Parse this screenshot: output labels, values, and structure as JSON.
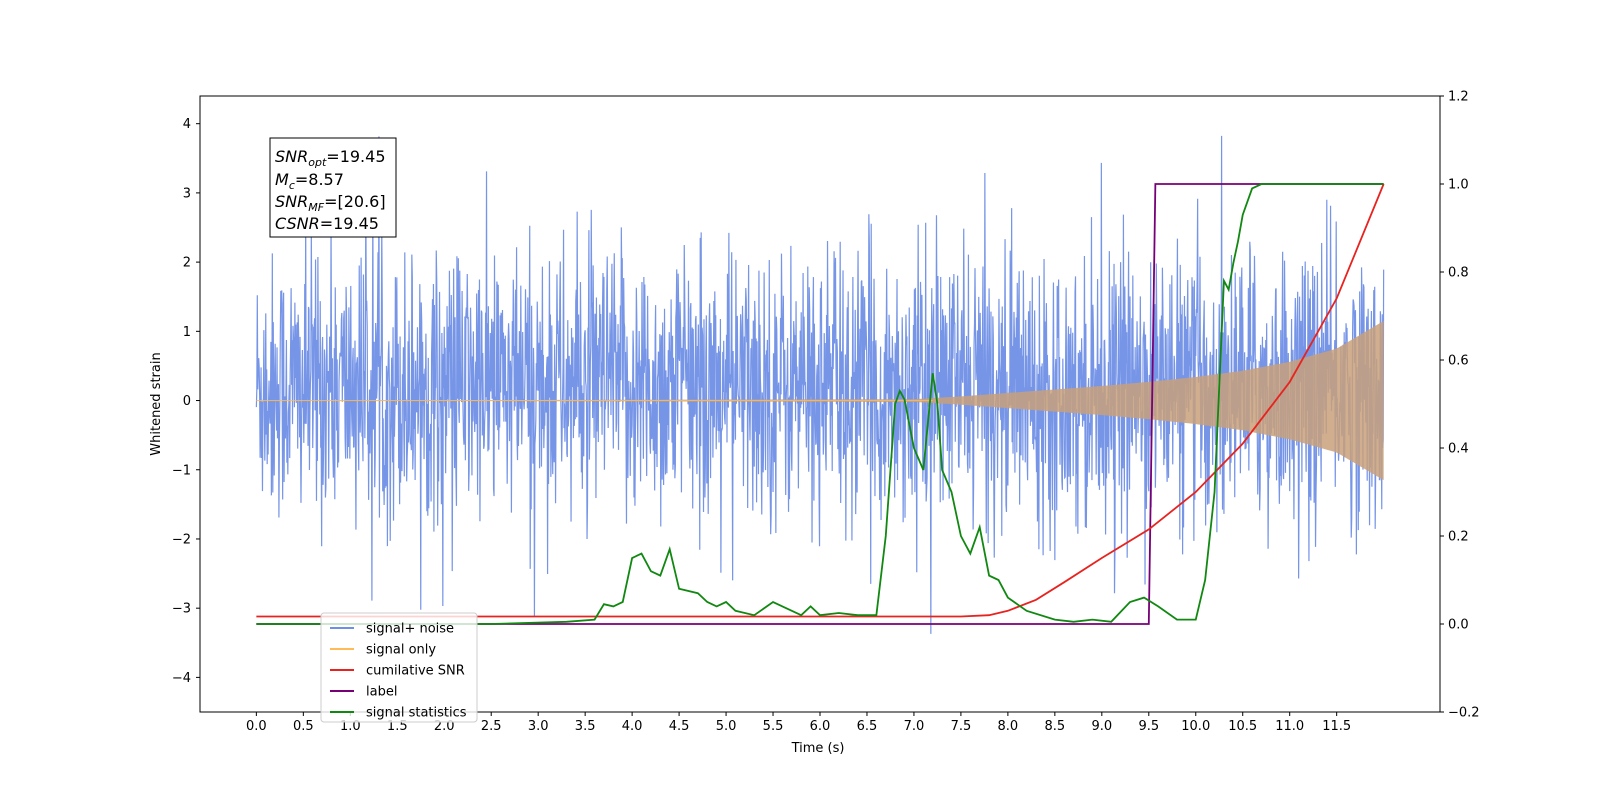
{
  "chart_data": {
    "type": "line",
    "xlabel": "Time (s)",
    "ylabel": "Whitened strain",
    "xlim": [
      -0.6,
      12.6
    ],
    "ylim": [
      -4.5,
      4.4
    ],
    "y2lim": [
      -0.2,
      1.2
    ],
    "x_ticks": [
      "0.0",
      "0.5",
      "1.0",
      "1.5",
      "2.0",
      "2.5",
      "3.0",
      "3.5",
      "4.0",
      "4.5",
      "5.0",
      "5.5",
      "6.0",
      "6.5",
      "7.0",
      "7.5",
      "8.0",
      "8.5",
      "9.0",
      "9.5",
      "10.0",
      "10.5",
      "11.0",
      "11.5"
    ],
    "y_ticks": [
      "4",
      "3",
      "2",
      "1",
      "0",
      "−1",
      "−2",
      "−3",
      "−4"
    ],
    "y2_ticks": [
      "1.2",
      "1.0",
      "0.8",
      "0.6",
      "0.4",
      "0.2",
      "0.0",
      "−0.2"
    ],
    "grid": false,
    "legend_position": "lower-left",
    "annotation": {
      "snr_opt": "=19.45",
      "mc": "=8.57",
      "snr_mf": "=[20.6]",
      "csnr": "=19.45"
    },
    "series": [
      {
        "name": "signal+ noise",
        "axis": "left",
        "color": "#6f8fe6",
        "note": "whitened noisy strain, amplitude ~ ±2.5 with spikes to ±4",
        "t_range": [
          0,
          12
        ]
      },
      {
        "name": "signal only",
        "axis": "left",
        "color": "#ffbb55",
        "envelope_t": [
          0,
          7.0,
          7.5,
          8.0,
          8.5,
          9.0,
          9.5,
          10.0,
          10.5,
          11.0,
          11.5,
          12.0
        ],
        "envelope_amp": [
          0.0,
          0.02,
          0.06,
          0.11,
          0.16,
          0.21,
          0.27,
          0.34,
          0.43,
          0.56,
          0.75,
          1.15
        ]
      },
      {
        "name": "cumilative SNR",
        "axis": "right",
        "color": "#e8231f",
        "t": [
          0,
          7.5,
          7.8,
          8.0,
          8.3,
          8.6,
          9.0,
          9.5,
          10.0,
          10.5,
          11.0,
          11.5,
          12.0
        ],
        "values": [
          0.017,
          0.017,
          0.02,
          0.03,
          0.055,
          0.095,
          0.15,
          0.215,
          0.3,
          0.41,
          0.55,
          0.74,
          1.0
        ]
      },
      {
        "name": "label",
        "axis": "right",
        "color": "#770077",
        "t": [
          0,
          9.5,
          9.57,
          12.0
        ],
        "values": [
          0.0,
          0.0,
          1.0,
          1.0
        ]
      },
      {
        "name": "signal statistics",
        "axis": "right",
        "color": "#118811",
        "t": [
          0,
          2.5,
          3.3,
          3.6,
          3.7,
          3.8,
          3.9,
          4.0,
          4.1,
          4.2,
          4.3,
          4.4,
          4.5,
          4.7,
          4.8,
          4.9,
          5.0,
          5.1,
          5.3,
          5.5,
          5.6,
          5.8,
          5.9,
          6.0,
          6.2,
          6.4,
          6.5,
          6.6,
          6.7,
          6.8,
          6.85,
          6.9,
          7.0,
          7.1,
          7.2,
          7.25,
          7.3,
          7.4,
          7.5,
          7.6,
          7.7,
          7.8,
          7.9,
          8.0,
          8.2,
          8.5,
          8.7,
          8.9,
          9.1,
          9.3,
          9.45,
          9.6,
          9.8,
          10.0,
          10.1,
          10.2,
          10.3,
          10.35,
          10.4,
          10.45,
          10.5,
          10.6,
          10.7,
          11.0,
          12.0
        ],
        "values": [
          0.0,
          0.0,
          0.005,
          0.01,
          0.045,
          0.04,
          0.05,
          0.15,
          0.16,
          0.12,
          0.11,
          0.17,
          0.08,
          0.07,
          0.05,
          0.04,
          0.05,
          0.03,
          0.02,
          0.05,
          0.04,
          0.02,
          0.04,
          0.02,
          0.025,
          0.02,
          0.02,
          0.02,
          0.2,
          0.5,
          0.53,
          0.51,
          0.4,
          0.35,
          0.57,
          0.5,
          0.35,
          0.3,
          0.2,
          0.16,
          0.22,
          0.11,
          0.1,
          0.06,
          0.03,
          0.01,
          0.005,
          0.01,
          0.005,
          0.05,
          0.06,
          0.04,
          0.01,
          0.01,
          0.1,
          0.3,
          0.78,
          0.76,
          0.82,
          0.87,
          0.93,
          0.99,
          1.0,
          1.0,
          1.0
        ]
      }
    ]
  }
}
